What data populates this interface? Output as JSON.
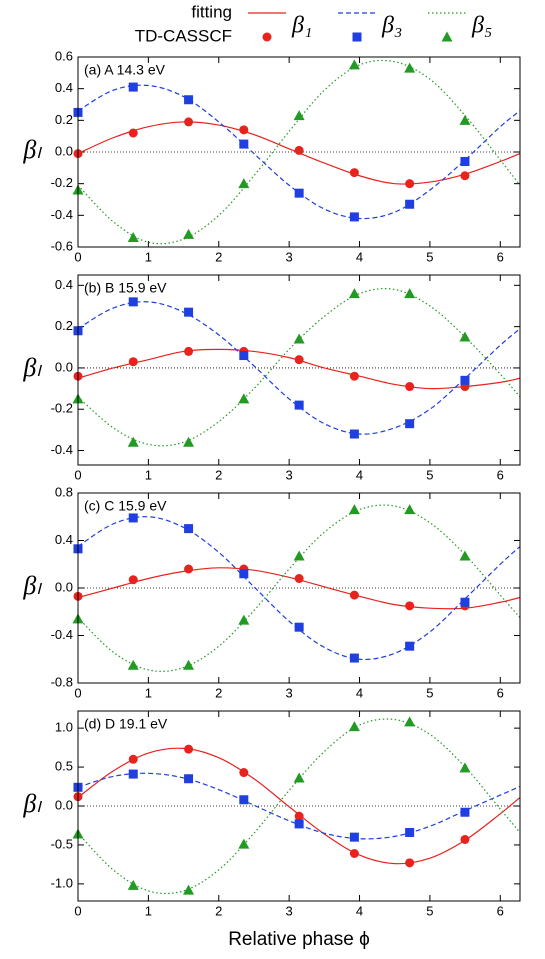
{
  "chart_data": [
    {
      "type": "scatter",
      "title": "(a) A 14.3 eV",
      "ylabel": "βₗ",
      "fit_label": "fitting",
      "points_label": "TD-CASSCF",
      "xlim": [
        0,
        6.28
      ],
      "ylim": [
        -0.6,
        0.6
      ],
      "xticks": [
        0,
        1,
        2,
        3,
        4,
        5,
        6
      ],
      "yticks": [
        -0.6,
        -0.4,
        -0.2,
        {
          "value": 0,
          "label": "0.0"
        },
        0.2,
        0.4,
        0.6
      ],
      "x": [
        0,
        0.785,
        1.571,
        2.356,
        3.142,
        3.927,
        4.712,
        5.498
      ],
      "fit_x": [
        0,
        0.5,
        1,
        1.5,
        2,
        2.5,
        3,
        3.5,
        4,
        4.5,
        5,
        5.5,
        6,
        6.28
      ],
      "series": [
        {
          "name": "β₁",
          "color": "#e8221c",
          "marker": "circle",
          "line_style": "solid",
          "values": [
            -0.01,
            0.12,
            0.19,
            0.14,
            0.01,
            -0.13,
            -0.2,
            -0.15
          ],
          "fit_values": [
            -0.01,
            0.09,
            0.16,
            0.19,
            0.17,
            0.11,
            0.02,
            -0.07,
            -0.15,
            -0.2,
            -0.19,
            -0.14,
            -0.06,
            -0.01
          ]
        },
        {
          "name": "β₃",
          "color": "#1f3fe0",
          "marker": "square",
          "line_style": "dashed",
          "values": [
            0.25,
            0.41,
            0.33,
            0.05,
            -0.26,
            -0.41,
            -0.33,
            -0.06
          ],
          "fit_values": [
            0.26,
            0.39,
            0.42,
            0.35,
            0.19,
            -0.01,
            -0.21,
            -0.36,
            -0.42,
            -0.38,
            -0.24,
            -0.05,
            0.16,
            0.26
          ]
        },
        {
          "name": "β₅",
          "color": "#239a23",
          "marker": "triangle",
          "line_style": "dotted",
          "values": [
            -0.24,
            -0.54,
            -0.52,
            -0.2,
            0.23,
            0.55,
            0.53,
            0.2
          ],
          "fit_values": [
            -0.21,
            -0.44,
            -0.57,
            -0.55,
            -0.4,
            -0.15,
            0.13,
            0.39,
            0.55,
            0.57,
            0.46,
            0.23,
            -0.05,
            -0.21
          ]
        }
      ]
    },
    {
      "type": "scatter",
      "title": "(b) B 15.9 eV",
      "xlim": [
        0,
        6.28
      ],
      "ylim": [
        -0.47,
        0.45
      ],
      "xticks": [
        0,
        1,
        2,
        3,
        4,
        5,
        6
      ],
      "yticks": [
        -0.4,
        -0.2,
        {
          "value": 0,
          "label": "0.0"
        },
        0.2,
        0.4
      ],
      "x": [
        0,
        0.785,
        1.571,
        2.356,
        3.142,
        3.927,
        4.712,
        5.498
      ],
      "fit_x": [
        0,
        0.5,
        1,
        1.5,
        2,
        2.5,
        3,
        3.5,
        4,
        4.5,
        5,
        5.5,
        6,
        6.28
      ],
      "series": [
        {
          "color": "#e8221c",
          "marker": "circle",
          "line_style": "solid",
          "values": [
            -0.04,
            0.03,
            0.08,
            0.08,
            0.04,
            -0.04,
            -0.09,
            -0.09
          ],
          "fit_values": [
            -0.05,
            0.0,
            0.04,
            0.08,
            0.09,
            0.08,
            0.05,
            0.0,
            -0.04,
            -0.08,
            -0.1,
            -0.09,
            -0.07,
            -0.05
          ]
        },
        {
          "color": "#1f3fe0",
          "marker": "square",
          "line_style": "dashed",
          "values": [
            0.18,
            0.32,
            0.27,
            0.06,
            -0.18,
            -0.32,
            -0.27,
            -0.06
          ],
          "fit_values": [
            0.19,
            0.29,
            0.32,
            0.27,
            0.16,
            0.01,
            -0.15,
            -0.27,
            -0.32,
            -0.29,
            -0.2,
            -0.05,
            0.11,
            0.19
          ]
        },
        {
          "color": "#239a23",
          "marker": "triangle",
          "line_style": "dotted",
          "values": [
            -0.15,
            -0.36,
            -0.36,
            -0.15,
            0.14,
            0.36,
            0.36,
            0.15
          ],
          "fit_values": [
            -0.14,
            -0.29,
            -0.37,
            -0.36,
            -0.26,
            -0.1,
            0.09,
            0.25,
            0.36,
            0.38,
            0.3,
            0.15,
            -0.03,
            -0.14
          ]
        }
      ]
    },
    {
      "type": "scatter",
      "title": "(c) C 15.9 eV",
      "xlim": [
        0,
        6.28
      ],
      "ylim": [
        -0.8,
        0.8
      ],
      "xticks": [
        0,
        1,
        2,
        3,
        4,
        5,
        6
      ],
      "yticks": [
        -0.8,
        -0.4,
        {
          "value": 0,
          "label": "0.0"
        },
        0.4,
        0.8
      ],
      "x": [
        0,
        0.785,
        1.571,
        2.356,
        3.142,
        3.927,
        4.712,
        5.498
      ],
      "fit_x": [
        0,
        0.5,
        1,
        1.5,
        2,
        2.5,
        3,
        3.5,
        4,
        4.5,
        5,
        5.5,
        6,
        6.28
      ],
      "series": [
        {
          "color": "#e8221c",
          "marker": "circle",
          "line_style": "solid",
          "values": [
            -0.07,
            0.07,
            0.16,
            0.16,
            0.08,
            -0.06,
            -0.15,
            -0.15
          ],
          "fit_values": [
            -0.08,
            0.0,
            0.08,
            0.14,
            0.17,
            0.15,
            0.09,
            0.01,
            -0.07,
            -0.14,
            -0.17,
            -0.17,
            -0.12,
            -0.08
          ]
        },
        {
          "color": "#1f3fe0",
          "marker": "square",
          "line_style": "dashed",
          "values": [
            0.33,
            0.59,
            0.5,
            0.12,
            -0.33,
            -0.59,
            -0.49,
            -0.12
          ],
          "fit_values": [
            0.35,
            0.54,
            0.6,
            0.51,
            0.3,
            0.01,
            -0.28,
            -0.5,
            -0.6,
            -0.55,
            -0.37,
            -0.09,
            0.2,
            0.35
          ]
        },
        {
          "color": "#239a23",
          "marker": "triangle",
          "line_style": "dotted",
          "values": [
            -0.26,
            -0.65,
            -0.65,
            -0.27,
            0.27,
            0.66,
            0.66,
            0.27
          ],
          "fit_values": [
            -0.25,
            -0.54,
            -0.69,
            -0.67,
            -0.49,
            -0.19,
            0.16,
            0.47,
            0.66,
            0.69,
            0.55,
            0.28,
            -0.06,
            -0.25
          ]
        }
      ]
    },
    {
      "type": "scatter",
      "title": "(d) D 19.1 eV",
      "xlabel": "Relative phase ϕ",
      "xlim": [
        0,
        6.28
      ],
      "ylim": [
        -1.22,
        1.22
      ],
      "xticks": [
        0,
        1,
        2,
        3,
        4,
        5,
        6
      ],
      "yticks": [
        {
          "value": -1,
          "label": "-1.0"
        },
        -0.5,
        {
          "value": 0,
          "label": "0.0"
        },
        0.5,
        {
          "value": 1,
          "label": "1.0"
        }
      ],
      "x": [
        0,
        0.785,
        1.571,
        2.356,
        3.142,
        3.927,
        4.712,
        5.498
      ],
      "fit_x": [
        0,
        0.5,
        1,
        1.5,
        2,
        2.5,
        3,
        3.5,
        4,
        4.5,
        5,
        5.5,
        6,
        6.28
      ],
      "series": [
        {
          "color": "#e8221c",
          "marker": "circle",
          "line_style": "solid",
          "values": [
            0.12,
            0.6,
            0.73,
            0.43,
            -0.13,
            -0.61,
            -0.73,
            -0.43
          ],
          "fit_values": [
            0.11,
            0.45,
            0.68,
            0.74,
            0.62,
            0.35,
            -0.01,
            -0.36,
            -0.63,
            -0.74,
            -0.67,
            -0.44,
            -0.1,
            0.11
          ]
        },
        {
          "color": "#1f3fe0",
          "marker": "square",
          "line_style": "dashed",
          "values": [
            0.24,
            0.41,
            0.35,
            0.08,
            -0.23,
            -0.4,
            -0.34,
            -0.08
          ],
          "fit_values": [
            0.24,
            0.38,
            0.42,
            0.36,
            0.21,
            0.01,
            -0.19,
            -0.35,
            -0.42,
            -0.39,
            -0.26,
            -0.06,
            0.14,
            0.25
          ]
        },
        {
          "color": "#239a23",
          "marker": "triangle",
          "line_style": "dotted",
          "values": [
            -0.36,
            -1.02,
            -1.08,
            -0.49,
            0.36,
            1.02,
            1.08,
            0.49
          ],
          "fit_values": [
            -0.35,
            -0.82,
            -1.09,
            -1.09,
            -0.82,
            -0.35,
            0.2,
            0.7,
            1.04,
            1.11,
            0.92,
            0.5,
            -0.04,
            -0.34
          ]
        }
      ]
    }
  ]
}
